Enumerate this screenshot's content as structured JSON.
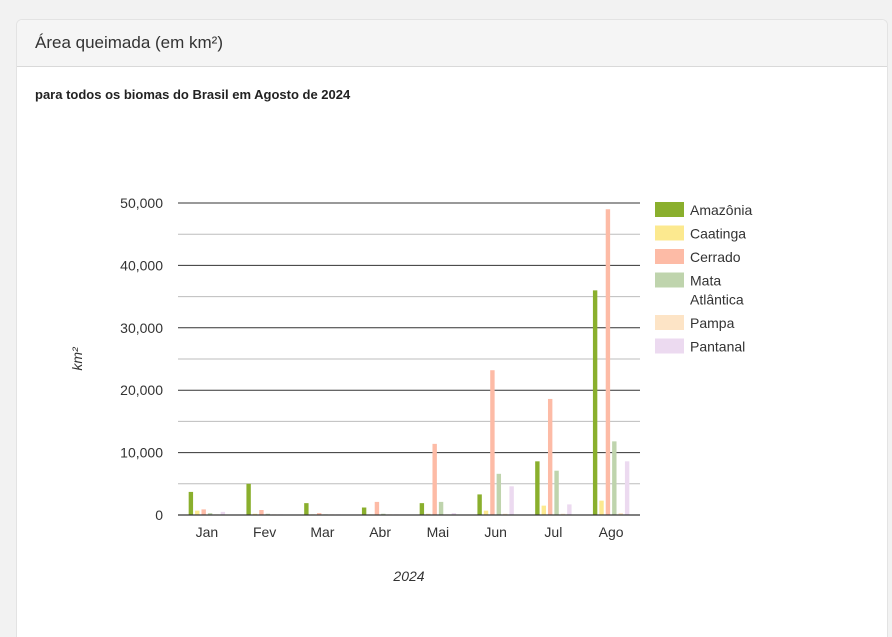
{
  "card": {
    "title": "Área queimada (em km²)",
    "subtitle": "para todos os biomas do Brasil em Agosto de 2024"
  },
  "chart_data": {
    "type": "bar",
    "xlabel": "2024",
    "ylabel": "km²",
    "ylim": [
      0,
      50000
    ],
    "yticks": [
      0,
      10000,
      20000,
      30000,
      40000,
      50000
    ],
    "ytick_labels": [
      "0",
      "10,000",
      "20,000",
      "30,000",
      "40,000",
      "50,000"
    ],
    "categories": [
      "Jan",
      "Fev",
      "Mar",
      "Abr",
      "Mai",
      "Jun",
      "Jul",
      "Ago"
    ],
    "legend_position": "right",
    "grid": true,
    "series": [
      {
        "name": "Amazônia",
        "color": "#8aaf2d",
        "values": [
          3700,
          5000,
          1900,
          1200,
          1900,
          3300,
          8600,
          36000
        ]
      },
      {
        "name": "Caatinga",
        "color": "#fce98f",
        "values": [
          700,
          200,
          100,
          100,
          200,
          700,
          1500,
          2300
        ]
      },
      {
        "name": "Cerrado",
        "color": "#fdbba6",
        "values": [
          900,
          800,
          300,
          2100,
          11400,
          23200,
          18600,
          49000
        ]
      },
      {
        "name": "Mata\nAtlântica",
        "color": "#bfd4ad",
        "values": [
          300,
          200,
          100,
          200,
          2100,
          6600,
          7100,
          11800
        ]
      },
      {
        "name": "Pampa",
        "color": "#fde4c6",
        "values": [
          100,
          100,
          100,
          100,
          100,
          200,
          200,
          300
        ]
      },
      {
        "name": "Pantanal",
        "color": "#ecdaf0",
        "values": [
          500,
          100,
          100,
          100,
          300,
          4600,
          1700,
          8600
        ]
      }
    ]
  }
}
